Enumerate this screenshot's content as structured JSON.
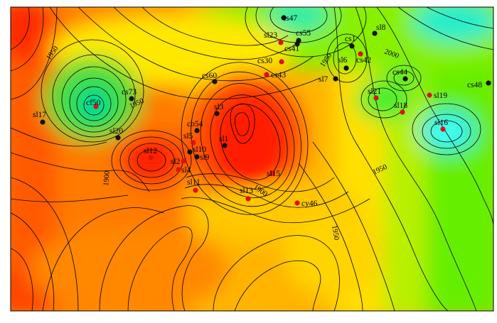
{
  "map": {
    "contour_labels": [
      {
        "id": "c1",
        "text": "1950"
      },
      {
        "id": "c2",
        "text": "1950"
      },
      {
        "id": "c3",
        "text": "1950"
      },
      {
        "id": "c4",
        "text": "2000"
      },
      {
        "id": "c5",
        "text": "1900"
      },
      {
        "id": "c6",
        "text": "1900"
      },
      {
        "id": "c7",
        "text": "1950"
      },
      {
        "id": "c8",
        "text": "1950"
      }
    ],
    "wells": [
      {
        "id": "cs47",
        "label": "cs47",
        "color": "#111111"
      },
      {
        "id": "sl23",
        "label": "sl23",
        "color": "#dd1111"
      },
      {
        "id": "cs55",
        "label": "cs55",
        "color": "#111111"
      },
      {
        "id": "cs41",
        "label": "cs41",
        "color": "#111111"
      },
      {
        "id": "sl8",
        "label": "sl8",
        "color": "#111111"
      },
      {
        "id": "cs1",
        "label": "cs1",
        "color": "#111111"
      },
      {
        "id": "cs42",
        "label": "cs42",
        "color": "#dd1111"
      },
      {
        "id": "sl6",
        "label": "sl6",
        "color": "#111111"
      },
      {
        "id": "cs30",
        "label": "cs30",
        "color": "#dd1111"
      },
      {
        "id": "cs43",
        "label": "cs43",
        "color": "#dd1111"
      },
      {
        "id": "sl7",
        "label": "sl7",
        "color": "#111111"
      },
      {
        "id": "cs44",
        "label": "cs44",
        "color": "#111111"
      },
      {
        "id": "cs48",
        "label": "cs48",
        "color": "#111111"
      },
      {
        "id": "cs60",
        "label": "cs60",
        "color": "#111111"
      },
      {
        "id": "sl21",
        "label": "sl21",
        "color": "#dd1111"
      },
      {
        "id": "sl19",
        "label": "sl19",
        "color": "#dd1111"
      },
      {
        "id": "cs73",
        "label": "cs73",
        "color": "#111111"
      },
      {
        "id": "cf50",
        "label": "cf50",
        "color": "#dd1111"
      },
      {
        "id": "sl18",
        "label": "sl18",
        "color": "#dd1111"
      },
      {
        "id": "sl3",
        "label": "sl3",
        "color": "#111111"
      },
      {
        "id": "sl17",
        "label": "sl17",
        "color": "#111111"
      },
      {
        "id": "cb54",
        "label": "cb54",
        "color": "#111111"
      },
      {
        "id": "sl16",
        "label": "sl16",
        "color": "#dd1111"
      },
      {
        "id": "sl20",
        "label": "sl20",
        "color": "#111111"
      },
      {
        "id": "sl5",
        "label": "sl5",
        "color": "#dd1111"
      },
      {
        "id": "sl1",
        "label": "sl1",
        "color": "#111111"
      },
      {
        "id": "sl12",
        "label": "sl12",
        "color": "#dd1111"
      },
      {
        "id": "sl10",
        "label": "sl10",
        "color": "#111111"
      },
      {
        "id": "sl9",
        "label": "sl9",
        "color": "#111111"
      },
      {
        "id": "sl2",
        "label": "sl2",
        "color": "#dd1111"
      },
      {
        "id": "sl4",
        "label": "sl4",
        "color": "#dd1111"
      },
      {
        "id": "sl15",
        "label": "sl15",
        "color": "#dd1111"
      },
      {
        "id": "sl11",
        "label": "sl11",
        "color": "#dd1111"
      },
      {
        "id": "sl13",
        "label": "sl13",
        "color": "#dd1111"
      },
      {
        "id": "cy46",
        "label": "cy46",
        "color": "#dd1111"
      }
    ]
  }
}
